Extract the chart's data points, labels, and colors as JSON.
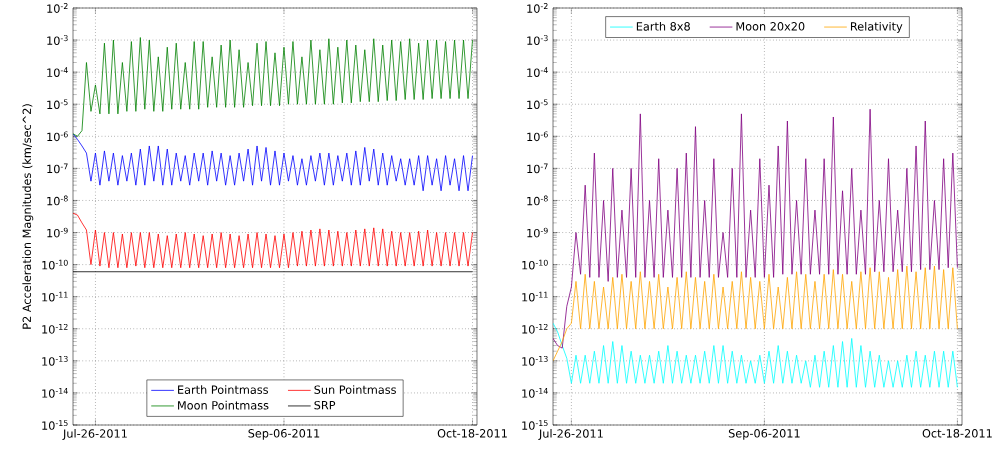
{
  "chart_data": [
    {
      "type": "line",
      "ylabel": "P2 Acceleration Magnitudes (km/sec^2)",
      "log": true,
      "grid": true,
      "legend": "bottom",
      "xlim": [
        "2011-07-21",
        "2011-10-19"
      ],
      "ylim": [
        1e-15,
        0.01
      ],
      "xticks": [
        {
          "value": "2011-07-26",
          "label": "Jul-26-2011"
        },
        {
          "value": "2011-09-06",
          "label": "Sep-06-2011"
        },
        {
          "value": "2011-10-18",
          "label": "Oct-18-2011"
        }
      ],
      "yticks": [
        {
          "value": 1e-15,
          "label": "10$^{-15}$"
        },
        {
          "value": 1e-14,
          "label": "10$^{-14}$"
        },
        {
          "value": 1e-13,
          "label": "10$^{-13}$"
        },
        {
          "value": 1e-12,
          "label": "10$^{-12}$"
        },
        {
          "value": 1e-11,
          "label": "10$^{-11}$"
        },
        {
          "value": 1e-10,
          "label": "10$^{-10}$"
        },
        {
          "value": 1e-09,
          "label": "10$^{-9}$"
        },
        {
          "value": 1e-08,
          "label": "10$^{-8}$"
        },
        {
          "value": 1e-07,
          "label": "10$^{-7}$"
        },
        {
          "value": 1e-06,
          "label": "10$^{-6}$"
        },
        {
          "value": 1e-05,
          "label": "10$^{-5}$"
        },
        {
          "value": 0.0001,
          "label": "10$^{-4}$"
        },
        {
          "value": 0.001,
          "label": "10$^{-3}$"
        },
        {
          "value": 0.01,
          "label": "10$^{-2}$"
        }
      ],
      "x": [
        "2011-07-21",
        "2011-07-22",
        "2011-07-23",
        "2011-07-24",
        "2011-07-25",
        "2011-07-26",
        "2011-07-27",
        "2011-07-28",
        "2011-07-29",
        "2011-07-30",
        "2011-07-31",
        "2011-08-01",
        "2011-08-02",
        "2011-08-03",
        "2011-08-04",
        "2011-08-05",
        "2011-08-06",
        "2011-08-07",
        "2011-08-08",
        "2011-08-09",
        "2011-08-10",
        "2011-08-11",
        "2011-08-12",
        "2011-08-13",
        "2011-08-14",
        "2011-08-15",
        "2011-08-16",
        "2011-08-17",
        "2011-08-18",
        "2011-08-19",
        "2011-08-20",
        "2011-08-21",
        "2011-08-22",
        "2011-08-23",
        "2011-08-24",
        "2011-08-25",
        "2011-08-26",
        "2011-08-27",
        "2011-08-28",
        "2011-08-29",
        "2011-08-30",
        "2011-08-31",
        "2011-09-01",
        "2011-09-02",
        "2011-09-03",
        "2011-09-04",
        "2011-09-05",
        "2011-09-06",
        "2011-09-07",
        "2011-09-08",
        "2011-09-09",
        "2011-09-10",
        "2011-09-11",
        "2011-09-12",
        "2011-09-13",
        "2011-09-14",
        "2011-09-15",
        "2011-09-16",
        "2011-09-17",
        "2011-09-18",
        "2011-09-19",
        "2011-09-20",
        "2011-09-21",
        "2011-09-22",
        "2011-09-23",
        "2011-09-24",
        "2011-09-25",
        "2011-09-26",
        "2011-09-27",
        "2011-09-28",
        "2011-09-29",
        "2011-09-30",
        "2011-10-01",
        "2011-10-02",
        "2011-10-03",
        "2011-10-04",
        "2011-10-05",
        "2011-10-06",
        "2011-10-07",
        "2011-10-08",
        "2011-10-09",
        "2011-10-10",
        "2011-10-11",
        "2011-10-12",
        "2011-10-13",
        "2011-10-14",
        "2011-10-15",
        "2011-10-16",
        "2011-10-17",
        "2011-10-18"
      ],
      "series": [
        {
          "name": "Earth Pointmass",
          "color": "#0000ff",
          "values": [
            1.2e-06,
            8e-07,
            5e-07,
            3e-07,
            4e-08,
            3e-07,
            3e-08,
            3.5e-07,
            4e-08,
            3e-07,
            3e-08,
            2.5e-07,
            4e-08,
            3e-07,
            3e-08,
            4e-07,
            3e-08,
            5e-07,
            4e-08,
            5e-07,
            3e-08,
            4e-07,
            3e-08,
            3e-07,
            4e-08,
            2.5e-07,
            3e-08,
            3e-07,
            4e-08,
            3e-07,
            3e-08,
            3.5e-07,
            4e-08,
            3e-07,
            3e-08,
            2.5e-07,
            3e-08,
            3e-07,
            4e-08,
            4e-07,
            3e-08,
            5e-07,
            4e-08,
            4.5e-07,
            3e-08,
            3.5e-07,
            3e-08,
            3e-07,
            4e-08,
            2.5e-07,
            3e-08,
            2e-07,
            3e-08,
            2.5e-07,
            4e-08,
            3e-07,
            3e-08,
            3e-07,
            3e-08,
            2.5e-07,
            4e-08,
            3e-07,
            3e-08,
            3.5e-07,
            3e-08,
            4.5e-07,
            4e-08,
            4e-07,
            3e-08,
            3e-07,
            3e-08,
            2.5e-07,
            4e-08,
            2e-07,
            3e-08,
            2e-07,
            3e-08,
            2.5e-07,
            2e-08,
            2.5e-07,
            3e-08,
            2e-07,
            2e-08,
            2.5e-07,
            3e-08,
            2e-07,
            2e-08,
            2.5e-07,
            2e-08,
            2.5e-07
          ]
        },
        {
          "name": "Moon Pointmass",
          "color": "#008000",
          "values": [
            1.2e-06,
            1e-06,
            1.5e-06,
            0.0002,
            6e-06,
            4e-05,
            5e-06,
            0.0008,
            5e-06,
            0.001,
            5e-06,
            0.0002,
            6e-06,
            0.0009,
            6e-06,
            0.0012,
            7e-06,
            0.001,
            6e-06,
            0.0003,
            6e-06,
            0.0006,
            7e-06,
            0.0008,
            7e-06,
            0.0002,
            7e-06,
            0.0009,
            7e-06,
            0.0009,
            8e-06,
            0.0003,
            8e-06,
            0.0007,
            8e-06,
            0.001,
            8e-06,
            0.0005,
            8e-06,
            0.0002,
            9e-06,
            0.0008,
            9e-06,
            0.0009,
            9e-06,
            0.0004,
            9e-06,
            0.0006,
            1e-05,
            0.0009,
            1e-05,
            0.0003,
            1e-05,
            0.001,
            1e-05,
            0.0005,
            1e-05,
            0.0011,
            1e-05,
            0.0006,
            1.1e-05,
            0.001,
            1.1e-05,
            0.0007,
            1.2e-05,
            0.0005,
            1.2e-05,
            0.0011,
            1.2e-05,
            0.0007,
            1.3e-05,
            0.001,
            1.3e-05,
            0.0009,
            1.4e-05,
            0.0011,
            1.4e-05,
            0.0008,
            1.4e-05,
            0.001,
            1.5e-05,
            0.001,
            1.5e-05,
            0.0009,
            1.5e-05,
            0.001,
            1.5e-05,
            0.001,
            1.5e-05,
            0.001
          ]
        },
        {
          "name": "Sun Pointmass",
          "color": "#ff0000",
          "values": [
            4e-09,
            3.5e-09,
            2e-09,
            1.2e-09,
            1e-10,
            1.2e-09,
            9e-11,
            1e-09,
            8e-11,
            1e-09,
            8e-11,
            9e-10,
            8e-11,
            1e-09,
            9e-11,
            1e-09,
            8e-11,
            1e-09,
            8e-11,
            9e-10,
            8e-11,
            8e-10,
            8e-11,
            9e-10,
            8e-11,
            1e-09,
            8e-11,
            9e-10,
            8e-11,
            8e-10,
            8e-11,
            9e-10,
            8e-11,
            1e-09,
            8e-11,
            9e-10,
            8e-11,
            8e-10,
            8e-11,
            9e-10,
            8e-11,
            1e-09,
            8e-11,
            9e-10,
            8e-11,
            8e-10,
            8e-11,
            9e-10,
            8e-11,
            1e-09,
            9e-11,
            1.1e-09,
            9e-11,
            1.2e-09,
            9e-11,
            1.3e-09,
            9e-11,
            1.2e-09,
            9e-11,
            1.1e-09,
            9e-11,
            1e-09,
            9e-11,
            1.2e-09,
            9e-11,
            1.3e-09,
            9e-11,
            1.4e-09,
            9e-11,
            1.3e-09,
            9e-11,
            1.1e-09,
            9e-11,
            1e-09,
            9e-11,
            1e-09,
            9e-11,
            1.1e-09,
            9e-11,
            1.2e-09,
            9e-11,
            1e-09,
            9e-11,
            1e-09,
            9e-11,
            1e-09,
            9e-11,
            1e-09,
            9e-11,
            1e-09
          ]
        },
        {
          "name": "SRP",
          "color": "#000000",
          "x": [
            "2011-07-21",
            "2011-10-18"
          ],
          "values": [
            6e-11,
            6e-11
          ]
        }
      ]
    },
    {
      "type": "line",
      "log": true,
      "grid": true,
      "legend": "top",
      "xlim": [
        "2011-07-22",
        "2011-10-19"
      ],
      "ylim": [
        1e-15,
        0.01
      ],
      "xticks": [
        {
          "value": "2011-07-26",
          "label": "Jul-26-2011"
        },
        {
          "value": "2011-09-06",
          "label": "Sep-06-2011"
        },
        {
          "value": "2011-10-18",
          "label": "Oct-18-2011"
        }
      ],
      "yticks": [
        {
          "value": 1e-15,
          "label": "10$^{-15}$"
        },
        {
          "value": 1e-14,
          "label": "10$^{-14}$"
        },
        {
          "value": 1e-13,
          "label": "10$^{-13}$"
        },
        {
          "value": 1e-12,
          "label": "10$^{-12}$"
        },
        {
          "value": 1e-11,
          "label": "10$^{-11}$"
        },
        {
          "value": 1e-10,
          "label": "10$^{-10}$"
        },
        {
          "value": 1e-09,
          "label": "10$^{-9}$"
        },
        {
          "value": 1e-08,
          "label": "10$^{-8}$"
        },
        {
          "value": 1e-07,
          "label": "10$^{-7}$"
        },
        {
          "value": 1e-06,
          "label": "10$^{-6}$"
        },
        {
          "value": 1e-05,
          "label": "10$^{-5}$"
        },
        {
          "value": 0.0001,
          "label": "10$^{-4}$"
        },
        {
          "value": 0.001,
          "label": "10$^{-3}$"
        },
        {
          "value": 0.01,
          "label": "10$^{-2}$"
        }
      ],
      "x": [
        "2011-07-22",
        "2011-07-23",
        "2011-07-24",
        "2011-07-25",
        "2011-07-26",
        "2011-07-27",
        "2011-07-28",
        "2011-07-29",
        "2011-07-30",
        "2011-07-31",
        "2011-08-01",
        "2011-08-02",
        "2011-08-03",
        "2011-08-04",
        "2011-08-05",
        "2011-08-06",
        "2011-08-07",
        "2011-08-08",
        "2011-08-09",
        "2011-08-10",
        "2011-08-11",
        "2011-08-12",
        "2011-08-13",
        "2011-08-14",
        "2011-08-15",
        "2011-08-16",
        "2011-08-17",
        "2011-08-18",
        "2011-08-19",
        "2011-08-20",
        "2011-08-21",
        "2011-08-22",
        "2011-08-23",
        "2011-08-24",
        "2011-08-25",
        "2011-08-26",
        "2011-08-27",
        "2011-08-28",
        "2011-08-29",
        "2011-08-30",
        "2011-08-31",
        "2011-09-01",
        "2011-09-02",
        "2011-09-03",
        "2011-09-04",
        "2011-09-05",
        "2011-09-06",
        "2011-09-07",
        "2011-09-08",
        "2011-09-09",
        "2011-09-10",
        "2011-09-11",
        "2011-09-12",
        "2011-09-13",
        "2011-09-14",
        "2011-09-15",
        "2011-09-16",
        "2011-09-17",
        "2011-09-18",
        "2011-09-19",
        "2011-09-20",
        "2011-09-21",
        "2011-09-22",
        "2011-09-23",
        "2011-09-24",
        "2011-09-25",
        "2011-09-26",
        "2011-09-27",
        "2011-09-28",
        "2011-09-29",
        "2011-09-30",
        "2011-10-01",
        "2011-10-02",
        "2011-10-03",
        "2011-10-04",
        "2011-10-05",
        "2011-10-06",
        "2011-10-07",
        "2011-10-08",
        "2011-10-09",
        "2011-10-10",
        "2011-10-11",
        "2011-10-12",
        "2011-10-13",
        "2011-10-14",
        "2011-10-15",
        "2011-10-16",
        "2011-10-17",
        "2011-10-18"
      ],
      "series": [
        {
          "name": "Earth 8x8",
          "color": "#00ffff",
          "values": [
            1.5e-12,
            8e-13,
            3e-13,
            1.2e-13,
            2e-14,
            1.5e-13,
            2e-14,
            1.5e-13,
            2e-14,
            2e-13,
            2e-14,
            3e-13,
            2e-14,
            4e-13,
            2e-14,
            3e-13,
            2e-14,
            2e-13,
            2e-14,
            1.5e-13,
            2e-14,
            1.5e-13,
            2e-14,
            2e-13,
            2e-14,
            3e-13,
            2e-14,
            2e-13,
            2e-14,
            1.5e-13,
            2e-14,
            1.5e-13,
            2e-14,
            2e-13,
            2e-14,
            3e-13,
            2e-14,
            3e-13,
            2e-14,
            2e-13,
            2e-14,
            1.5e-13,
            2e-14,
            1e-13,
            2e-14,
            1.5e-13,
            2e-14,
            2e-13,
            2e-14,
            3e-13,
            2e-14,
            2e-13,
            2e-14,
            1.5e-13,
            2e-14,
            1e-13,
            1.5e-14,
            1.5e-13,
            1.5e-14,
            2e-13,
            1.5e-14,
            3e-13,
            1.5e-14,
            4e-13,
            1.5e-14,
            5e-13,
            1.5e-14,
            3e-13,
            1.5e-14,
            2e-13,
            1.5e-14,
            1.5e-13,
            1.5e-14,
            1e-13,
            1.5e-14,
            1e-13,
            1.5e-14,
            1.5e-13,
            1.5e-14,
            2e-13,
            1.5e-14,
            1.5e-13,
            1.5e-14,
            2e-13,
            1.5e-14,
            2e-13,
            1.5e-14,
            2e-13,
            1.5e-14
          ]
        },
        {
          "name": "Moon 20x20",
          "color": "#800080",
          "values": [
            5e-13,
            3e-13,
            2.5e-13,
            5e-12,
            2e-11,
            1e-09,
            5e-11,
            3e-08,
            4e-11,
            3e-07,
            4e-11,
            1e-08,
            3e-11,
            1e-07,
            4e-11,
            5e-09,
            4e-11,
            1e-07,
            4e-11,
            5e-06,
            4e-11,
            1e-08,
            4e-11,
            2e-07,
            4e-11,
            5e-09,
            4e-11,
            1e-07,
            4e-11,
            3e-07,
            4e-11,
            2e-06,
            4e-11,
            1e-08,
            4e-11,
            2e-07,
            4e-11,
            1e-09,
            4e-11,
            1e-07,
            4e-11,
            5e-06,
            4e-11,
            5e-09,
            4e-11,
            2e-07,
            4e-11,
            3e-08,
            4e-11,
            5e-07,
            5e-11,
            3e-06,
            5e-11,
            1e-08,
            5e-11,
            2e-07,
            5e-11,
            5e-09,
            5e-11,
            2e-07,
            5e-11,
            4e-06,
            5e-11,
            2e-08,
            5e-11,
            1e-07,
            5e-11,
            5e-09,
            5e-11,
            7e-06,
            6e-11,
            1e-08,
            6e-11,
            2e-07,
            6e-11,
            5e-09,
            6e-11,
            1e-07,
            6e-11,
            5e-07,
            7e-11,
            3e-06,
            7e-11,
            1e-08,
            7e-11,
            2e-07,
            8e-11,
            3e-07,
            8e-11
          ]
        },
        {
          "name": "Relativity",
          "color": "#ffa500",
          "values": [
            1e-13,
            2e-13,
            4e-13,
            1e-12,
            1.5e-12,
            3e-11,
            1e-12,
            5e-11,
            1e-12,
            3e-11,
            1e-12,
            2e-11,
            1e-12,
            4e-11,
            1e-12,
            5e-11,
            1e-12,
            3e-11,
            1e-12,
            6e-11,
            1e-12,
            3e-11,
            1e-12,
            5e-11,
            1e-12,
            2e-11,
            1e-12,
            4e-11,
            1e-12,
            6e-11,
            1e-12,
            4e-11,
            1e-12,
            3e-11,
            1e-12,
            5e-11,
            1e-12,
            2e-11,
            1e-12,
            3e-11,
            1e-12,
            6e-11,
            1e-12,
            4e-11,
            1e-12,
            3e-11,
            1e-12,
            5e-11,
            1e-12,
            2e-11,
            1e-12,
            4e-11,
            1e-12,
            6e-11,
            1e-12,
            5e-11,
            1e-12,
            3e-11,
            1e-12,
            5e-11,
            1e-12,
            7e-11,
            1e-12,
            5e-11,
            1e-12,
            3e-11,
            1e-12,
            6e-11,
            1e-12,
            8e-11,
            1e-12,
            6e-11,
            1e-12,
            4e-11,
            1e-12,
            7e-11,
            1e-12,
            9e-11,
            1e-12,
            6e-11,
            1e-12,
            8e-11,
            1e-12,
            9e-11,
            1e-12,
            7e-11,
            1e-12,
            8e-11,
            1e-12
          ]
        }
      ]
    }
  ]
}
